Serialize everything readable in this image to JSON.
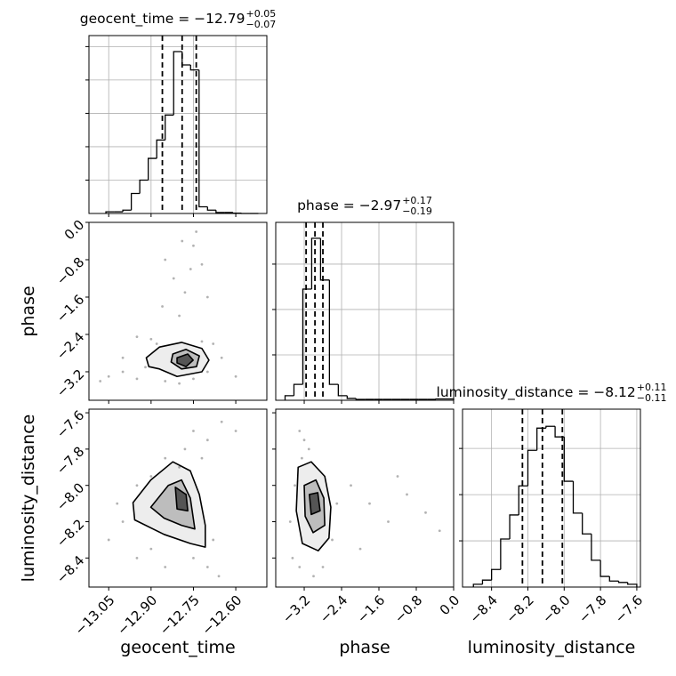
{
  "chart_data": {
    "type": "corner",
    "parameters": [
      {
        "name": "geocent_time",
        "lim": [
          -13.12,
          -12.49
        ],
        "ticks": [
          {
            "value": -13.05,
            "label": "−13.05"
          },
          {
            "value": -12.9,
            "label": "−12.90"
          },
          {
            "value": -12.75,
            "label": "−12.75"
          },
          {
            "value": -12.6,
            "label": "−12.60"
          }
        ],
        "title": "geocent_time = −12.79",
        "title_upper": "+0.05",
        "title_lower": "−0.07",
        "quantiles": [
          -12.86,
          -12.79,
          -12.74
        ],
        "hist": {
          "bins": [
            -13.06,
            -13.03,
            -13.0,
            -12.97,
            -12.94,
            -12.91,
            -12.88,
            -12.85,
            -12.82,
            -12.79,
            -12.76,
            -12.73,
            -12.7,
            -12.67,
            -12.64,
            -12.61,
            -12.58,
            -12.55,
            -12.52
          ],
          "counts": [
            50,
            50,
            100,
            600,
            1000,
            1650,
            2200,
            2950,
            4850,
            4450,
            4300,
            200,
            100,
            30,
            30,
            10,
            0,
            0
          ],
          "ylim": [
            0,
            5330
          ],
          "yticks": [
            1000,
            2000,
            3000,
            4000,
            5000
          ]
        }
      },
      {
        "name": "phase",
        "lim": [
          -3.81,
          0
        ],
        "ticks": [
          {
            "value": -3.2,
            "label": "−3.2"
          },
          {
            "value": -2.4,
            "label": "−2.4"
          },
          {
            "value": -1.6,
            "label": "−1.6"
          },
          {
            "value": -0.8,
            "label": "−0.8"
          },
          {
            "value": 0,
            "label": "0.0"
          }
        ],
        "title": "phase = −2.97",
        "title_upper": "+0.17",
        "title_lower": "−0.19",
        "quantiles": [
          -3.16,
          -2.97,
          -2.8
        ],
        "hist": {
          "bins": [
            -3.61,
            -3.42,
            -3.23,
            -3.04,
            -2.85,
            -2.66,
            -2.47,
            -2.28,
            -2.09,
            -1.9,
            -1.71,
            -1.52,
            -1.33,
            -1.14,
            -0.95,
            -0.76,
            -0.57,
            -0.38,
            -0.19,
            0.0
          ],
          "counts": [
            100,
            350,
            2450,
            3570,
            2650,
            350,
            100,
            40,
            20,
            20,
            20,
            20,
            20,
            20,
            20,
            20,
            20,
            30,
            30
          ],
          "ylim": [
            0,
            3920
          ],
          "yticks": [
            1000,
            2000,
            3000
          ]
        }
      },
      {
        "name": "luminosity_distance",
        "lim": [
          -8.56,
          -7.58
        ],
        "ticks": [
          {
            "value": -8.4,
            "label": "−8.4"
          },
          {
            "value": -8.2,
            "label": "−8.2"
          },
          {
            "value": -8.0,
            "label": "−8.0"
          },
          {
            "value": -7.8,
            "label": "−7.8"
          },
          {
            "value": -7.6,
            "label": "−7.6"
          }
        ],
        "title": "luminosity_distance = −8.12",
        "title_upper": "+0.11",
        "title_lower": "−0.11",
        "quantiles": [
          -8.23,
          -8.12,
          -8.01
        ],
        "hist": {
          "bins": [
            -8.5,
            -8.45,
            -8.4,
            -8.35,
            -8.3,
            -8.25,
            -8.2,
            -8.15,
            -8.1,
            -8.05,
            -8.0,
            -7.95,
            -7.9,
            -7.85,
            -7.8,
            -7.75,
            -7.7,
            -7.65,
            -7.6
          ],
          "counts": [
            60,
            150,
            380,
            1040,
            1560,
            2190,
            2960,
            3440,
            3480,
            3250,
            2290,
            1600,
            1150,
            580,
            230,
            130,
            100,
            60
          ],
          "ylim": [
            0,
            3850
          ],
          "yticks": [
            1000,
            2000,
            3000
          ]
        }
      }
    ],
    "pairs": [
      {
        "points": {
          "x": [
            -13.05,
            -13.0,
            -12.95,
            -12.92,
            -12.9,
            -12.95,
            -12.88,
            -12.85,
            -12.8,
            -12.75,
            -12.7,
            -12.68,
            -12.72,
            -12.8,
            -12.78,
            -12.76,
            -12.75,
            -12.74,
            -12.82,
            -12.85,
            -12.79,
            -12.86,
            -12.7,
            -12.72,
            -13.0,
            -12.6,
            -12.65,
            -13.08
          ],
          "y": [
            -3.3,
            -3.2,
            -3.35,
            -3.1,
            -2.5,
            -2.45,
            -2.6,
            -3.4,
            -3.45,
            -3.35,
            -3.2,
            -2.6,
            -2.55,
            -2.0,
            -1.5,
            -1.0,
            -0.5,
            -0.2,
            -1.2,
            -0.8,
            -0.4,
            -1.8,
            -1.6,
            -0.9,
            -2.9,
            -3.3,
            -2.9,
            -3.4
          ]
        },
        "contours": [
          {
            "x": [
              -12.917,
              -12.87,
              -12.792,
              -12.72,
              -12.695,
              -12.72,
              -12.808,
              -12.87,
              -12.908
            ],
            "y": [
              -2.9,
              -2.67,
              -2.57,
              -2.7,
              -2.95,
              -3.2,
              -3.3,
              -3.14,
              -3.09
            ]
          },
          {
            "x": [
              -12.823,
              -12.776,
              -12.729,
              -12.739,
              -12.792,
              -12.829
            ],
            "y": [
              -2.82,
              -2.72,
              -2.86,
              -3.09,
              -3.14,
              -2.99
            ]
          },
          {
            "x": [
              -12.808,
              -12.77,
              -12.751,
              -12.776,
              -12.808
            ],
            "y": [
              -2.9,
              -2.82,
              -2.95,
              -3.09,
              -3.01
            ]
          }
        ]
      },
      {
        "points": {
          "x": [
            -12.75,
            -12.7,
            -12.65,
            -12.6,
            -12.78,
            -12.72,
            -13.0,
            -13.05,
            -12.95,
            -12.9,
            -12.85,
            -12.75,
            -12.7,
            -12.68,
            -12.66,
            -12.95,
            -12.9,
            -12.85,
            -12.8,
            -13.02
          ],
          "y": [
            -7.7,
            -7.75,
            -7.65,
            -7.7,
            -7.8,
            -7.85,
            -8.2,
            -8.3,
            -8.4,
            -8.35,
            -8.45,
            -8.4,
            -8.45,
            -8.3,
            -8.5,
            -8.0,
            -7.95,
            -7.85,
            -7.9,
            -8.1
          ]
        },
        "contours": [
          {
            "x": [
              -12.964,
              -12.901,
              -12.823,
              -12.761,
              -12.729,
              -12.708,
              -12.708,
              -12.761,
              -12.854,
              -12.958
            ],
            "y": [
              -8.095,
              -7.97,
              -7.87,
              -7.92,
              -8.05,
              -8.22,
              -8.34,
              -8.32,
              -8.27,
              -8.19
            ]
          },
          {
            "x": [
              -12.901,
              -12.839,
              -12.792,
              -12.761,
              -12.745,
              -12.792,
              -12.854
            ],
            "y": [
              -8.12,
              -8.0,
              -7.97,
              -8.07,
              -8.24,
              -8.22,
              -8.18
            ]
          },
          {
            "x": [
              -12.814,
              -12.776,
              -12.77,
              -12.808
            ],
            "y": [
              -8.01,
              -8.05,
              -8.14,
              -8.13
            ]
          }
        ]
      },
      {
        "points": {
          "x": [
            -3.3,
            -3.2,
            -3.1,
            -3.25,
            -3.4,
            -3.5,
            -3.45,
            -3.3,
            -3.0,
            -2.8,
            -2.6,
            -2.5,
            -2.2,
            -1.8,
            -1.4,
            -1.0,
            -0.6,
            -0.3,
            -2.0,
            -1.2
          ],
          "y": [
            -7.7,
            -7.75,
            -7.8,
            -7.85,
            -8.0,
            -8.2,
            -8.4,
            -8.45,
            -8.5,
            -8.45,
            -8.3,
            -8.1,
            -8.0,
            -8.1,
            -8.2,
            -8.05,
            -8.15,
            -8.25,
            -8.35,
            -7.95
          ]
        },
        "contours": [
          {
            "x": [
              -3.33,
              -3.05,
              -2.76,
              -2.63,
              -2.67,
              -2.9,
              -3.24,
              -3.37
            ],
            "y": [
              -7.9,
              -7.87,
              -7.95,
              -8.12,
              -8.29,
              -8.36,
              -8.32,
              -8.14
            ]
          },
          {
            "x": [
              -3.2,
              -2.95,
              -2.78,
              -2.76,
              -3.01,
              -3.18
            ],
            "y": [
              -8.0,
              -7.97,
              -8.07,
              -8.22,
              -8.26,
              -8.17
            ]
          },
          {
            "x": [
              -3.09,
              -2.91,
              -2.86,
              -3.05
            ],
            "y": [
              -8.05,
              -8.04,
              -8.14,
              -8.16
            ]
          }
        ]
      }
    ]
  }
}
